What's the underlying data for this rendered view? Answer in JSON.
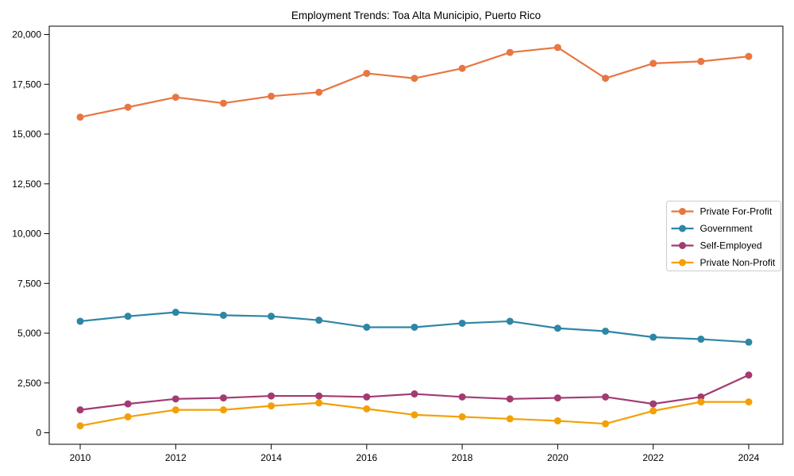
{
  "chart_data": {
    "type": "line",
    "title": "Employment Trends: Toa Alta Municipio, Puerto Rico",
    "xlabel": "",
    "ylabel": "",
    "x": [
      2010,
      2011,
      2012,
      2013,
      2014,
      2015,
      2016,
      2017,
      2018,
      2019,
      2020,
      2021,
      2022,
      2023,
      2024
    ],
    "series": [
      {
        "name": "Private For-Profit",
        "color": "#E87642",
        "values": [
          15850,
          16350,
          16850,
          16550,
          16900,
          17100,
          18050,
          17800,
          18300,
          19100,
          19350,
          17800,
          18550,
          18650,
          18900
        ]
      },
      {
        "name": "Government",
        "color": "#2E86A6",
        "values": [
          5600,
          5850,
          6050,
          5900,
          5850,
          5650,
          5300,
          5300,
          5500,
          5600,
          5250,
          5100,
          4800,
          4700,
          4550
        ]
      },
      {
        "name": "Self-Employed",
        "color": "#A23B72",
        "values": [
          1150,
          1450,
          1700,
          1750,
          1850,
          1850,
          1800,
          1950,
          1800,
          1700,
          1750,
          1800,
          1450,
          1800,
          2900
        ]
      },
      {
        "name": "Private Non-Profit",
        "color": "#F3A007",
        "values": [
          350,
          800,
          1150,
          1150,
          1350,
          1500,
          1200,
          900,
          800,
          700,
          600,
          450,
          1100,
          1550,
          1550
        ]
      }
    ],
    "yticks": [
      {
        "value": 0,
        "label": "0"
      },
      {
        "value": 2500,
        "label": "2,500"
      },
      {
        "value": 5000,
        "label": "5,000"
      },
      {
        "value": 7500,
        "label": "7,500"
      },
      {
        "value": 10000,
        "label": "10,000"
      },
      {
        "value": 12500,
        "label": "12,500"
      },
      {
        "value": 15000,
        "label": "15,000"
      },
      {
        "value": 17500,
        "label": "17,500"
      },
      {
        "value": 20000,
        "label": "20,000"
      }
    ],
    "xticks": [
      2010,
      2012,
      2014,
      2016,
      2018,
      2020,
      2022,
      2024
    ],
    "ylim": [
      0,
      20000
    ],
    "grid": false,
    "legend_position": "center right",
    "marker": "circle",
    "background": "#FFFFFF",
    "axis_color": "#000000",
    "legend_border_color": "#CCCCCC"
  }
}
